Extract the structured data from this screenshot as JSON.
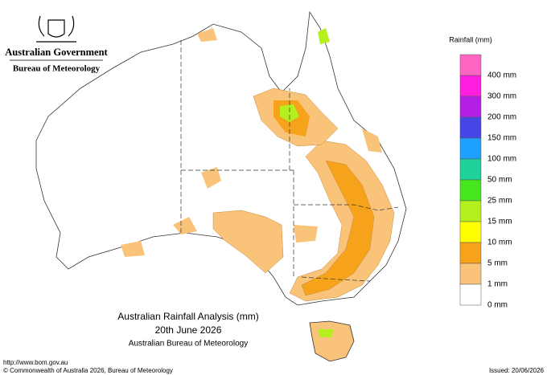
{
  "header": {
    "agency": "Australian Government",
    "bureau": "Bureau of Meteorology"
  },
  "legend": {
    "title": "Rainfall (mm)",
    "entries": [
      {
        "label": "400 mm",
        "color": "#ff66c4"
      },
      {
        "label": "300 mm",
        "color": "#ff1ee0"
      },
      {
        "label": "200 mm",
        "color": "#b41ee6"
      },
      {
        "label": "150 mm",
        "color": "#4646e6"
      },
      {
        "label": "100 mm",
        "color": "#1ea0ff"
      },
      {
        "label": "50 mm",
        "color": "#1ed29c"
      },
      {
        "label": "25 mm",
        "color": "#46e61e"
      },
      {
        "label": "15 mm",
        "color": "#b4f01e"
      },
      {
        "label": "10 mm",
        "color": "#ffff00"
      },
      {
        "label": "5 mm",
        "color": "#f7a21b"
      },
      {
        "label": "1 mm",
        "color": "#f9c37a"
      },
      {
        "label": "0 mm",
        "color": "#ffffff"
      }
    ]
  },
  "title": {
    "line1": "Australian Rainfall Analysis (mm)",
    "line2": "20th June 2026",
    "line3": "Australian Bureau of Meteorology"
  },
  "footer": {
    "url": "http://www.bom.gov.au",
    "copyright": "© Commonwealth of Australia 2026, Bureau of Meteorology",
    "issued": "Issued: 20/06/2026"
  }
}
